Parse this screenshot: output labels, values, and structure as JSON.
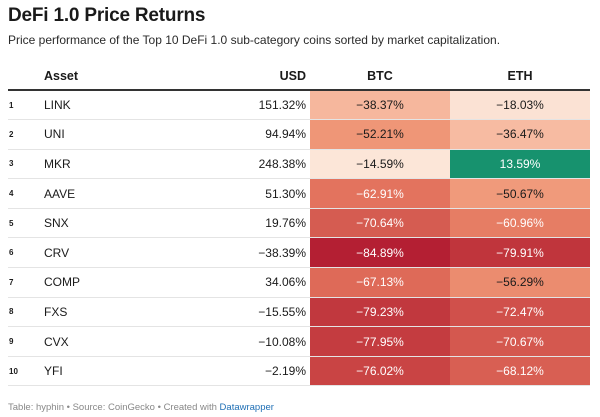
{
  "title": "DeFi 1.0 Price Returns",
  "subtitle": "Price performance of the Top 10 DeFi 1.0 sub-category coins sorted by market capitalization.",
  "columns": {
    "asset": "Asset",
    "usd": "USD",
    "btc": "BTC",
    "eth": "ETH"
  },
  "colors": {
    "positive": "#1a8a68",
    "negative_strong": "#b51f33",
    "negative_light": "#fbe3d5"
  },
  "rows": [
    {
      "rank": "1",
      "asset": "LINK",
      "usd": "151.32%",
      "btc": "−38.37%",
      "eth": "−18.03%",
      "btc_color": "#f6b79d",
      "eth_color": "#fbe2d4",
      "btc_text": "#1a1a1a",
      "eth_text": "#1a1a1a"
    },
    {
      "rank": "2",
      "asset": "UNI",
      "usd": "94.94%",
      "btc": "−52.21%",
      "eth": "−36.47%",
      "btc_color": "#ef9677",
      "eth_color": "#f7bba2",
      "btc_text": "#1a1a1a",
      "eth_text": "#1a1a1a"
    },
    {
      "rank": "3",
      "asset": "MKR",
      "usd": "248.38%",
      "btc": "−14.59%",
      "eth": "13.59%",
      "btc_color": "#fce6d8",
      "eth_color": "#17926e",
      "btc_text": "#1a1a1a",
      "eth_text": "#ffffff"
    },
    {
      "rank": "4",
      "asset": "AAVE",
      "usd": "51.30%",
      "btc": "−62.91%",
      "eth": "−50.67%",
      "btc_color": "#e3735e",
      "eth_color": "#f09a7b",
      "btc_text": "#ffffff",
      "eth_text": "#1a1a1a"
    },
    {
      "rank": "5",
      "asset": "SNX",
      "usd": "19.76%",
      "btc": "−70.64%",
      "eth": "−60.96%",
      "btc_color": "#d55c51",
      "eth_color": "#e67d64",
      "btc_text": "#ffffff",
      "eth_text": "#ffffff"
    },
    {
      "rank": "6",
      "asset": "CRV",
      "usd": "−38.39%",
      "btc": "−84.89%",
      "eth": "−79.91%",
      "btc_color": "#b41f33",
      "eth_color": "#c0353c",
      "btc_text": "#ffffff",
      "eth_text": "#ffffff"
    },
    {
      "rank": "7",
      "asset": "COMP",
      "usd": "34.06%",
      "btc": "−67.13%",
      "eth": "−56.29%",
      "btc_color": "#de6a58",
      "eth_color": "#eb8c6f",
      "btc_text": "#ffffff",
      "eth_text": "#1a1a1a"
    },
    {
      "rank": "8",
      "asset": "FXS",
      "usd": "−15.55%",
      "btc": "−79.23%",
      "eth": "−72.47%",
      "btc_color": "#c1383e",
      "eth_color": "#d0504b",
      "btc_text": "#ffffff",
      "eth_text": "#ffffff"
    },
    {
      "rank": "9",
      "asset": "CVX",
      "usd": "−10.08%",
      "btc": "−77.95%",
      "eth": "−70.67%",
      "btc_color": "#c43c40",
      "eth_color": "#d4584f",
      "btc_text": "#ffffff",
      "eth_text": "#ffffff"
    },
    {
      "rank": "10",
      "asset": "YFI",
      "usd": "−2.19%",
      "btc": "−76.02%",
      "eth": "−68.12%",
      "btc_color": "#c94444",
      "eth_color": "#d85f53",
      "btc_text": "#ffffff",
      "eth_text": "#ffffff"
    }
  ],
  "footer": {
    "text": "Table: hyphin • Source: CoinGecko • Created with ",
    "link": "Datawrapper"
  }
}
